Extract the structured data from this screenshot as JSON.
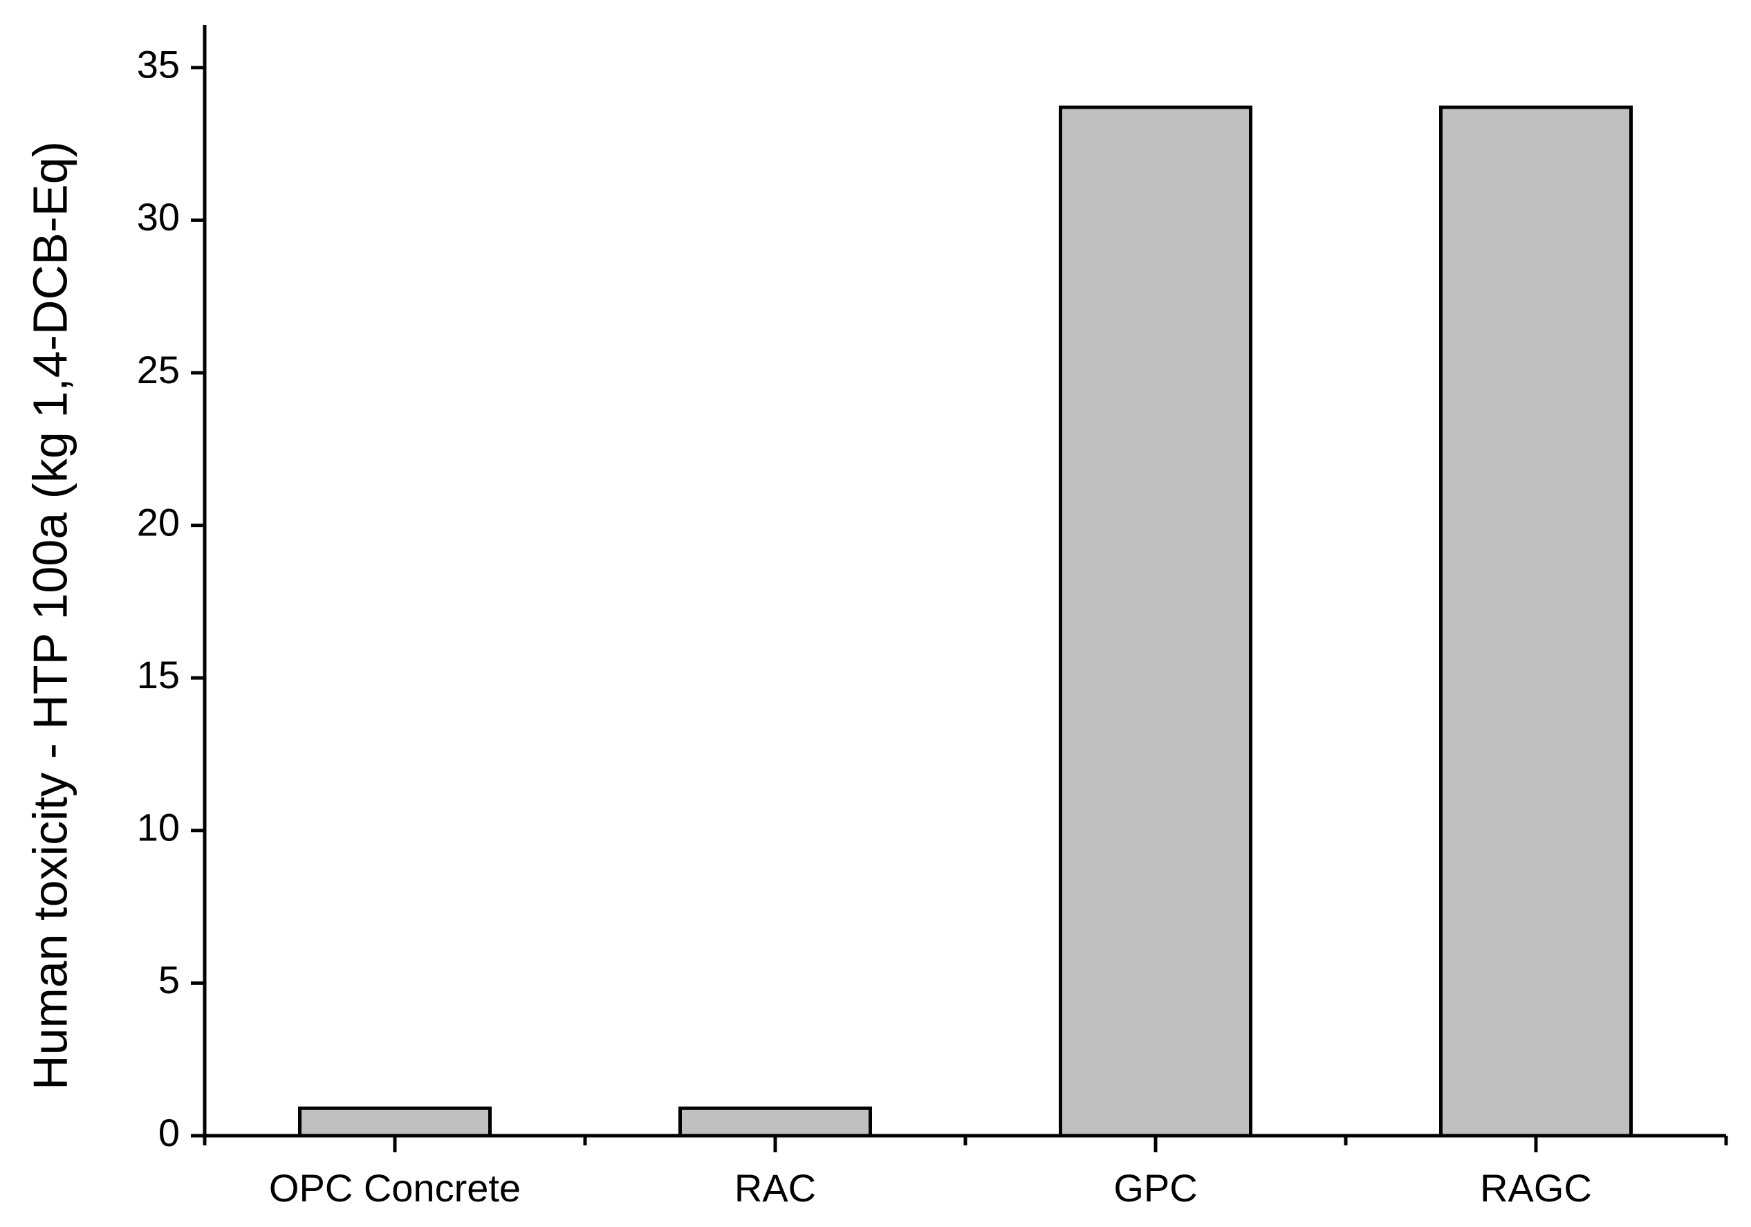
{
  "chart_data": {
    "type": "bar",
    "y_label": "Human toxicity - HTP 100a (kg 1,4-DCB-Eq)",
    "categories": [
      "OPC Concrete",
      "RAC",
      "GPC",
      "RAGC"
    ],
    "values": [
      0.9,
      0.9,
      33.7,
      33.7
    ],
    "color": "#c0c0c0",
    "ylim": [
      0,
      36.4
    ],
    "yticks": [
      0,
      5,
      10,
      15,
      20,
      25,
      30,
      35
    ],
    "grid": false
  }
}
